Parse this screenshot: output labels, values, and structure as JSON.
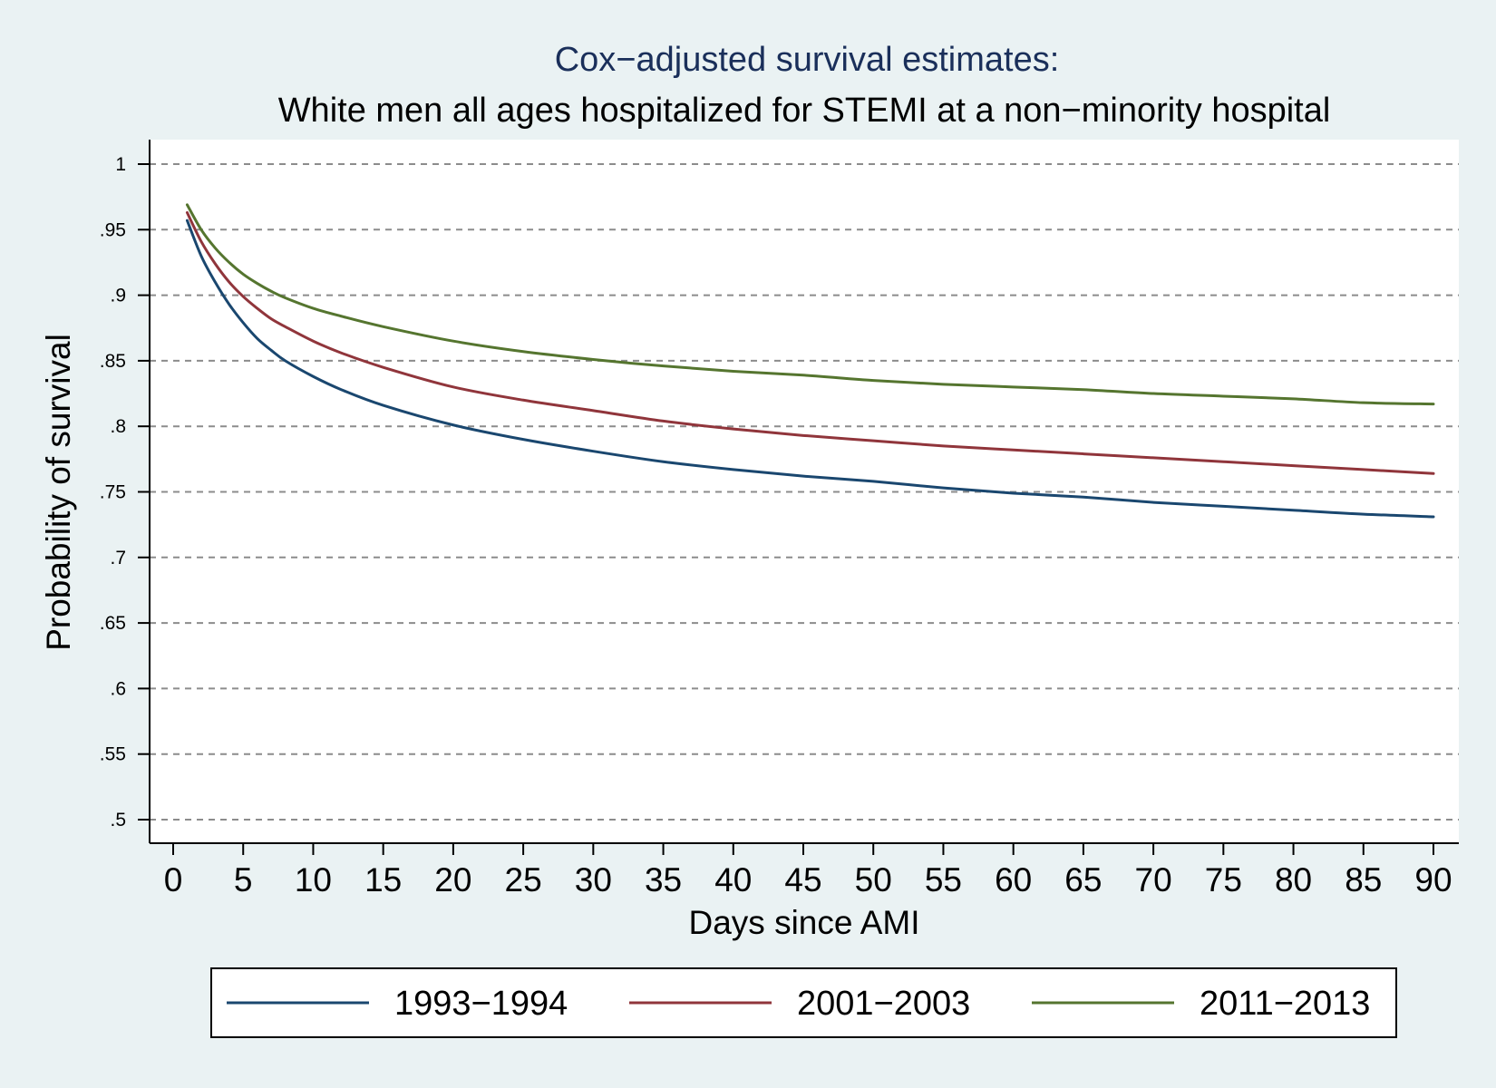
{
  "chart_data": {
    "type": "line",
    "title": "Cox−adjusted survival estimates:",
    "subtitle": "White men all ages hospitalized for STEMI at a non−minority hospital",
    "xlabel": "Days since AMI",
    "ylabel": "Probability of survival",
    "xlim": [
      0,
      90
    ],
    "ylim": [
      0.5,
      1
    ],
    "x_ticks": [
      0,
      5,
      10,
      15,
      20,
      25,
      30,
      35,
      40,
      45,
      50,
      55,
      60,
      65,
      70,
      75,
      80,
      85,
      90
    ],
    "x_tick_labels": [
      "0",
      "5",
      "10",
      "15",
      "20",
      "25",
      "30",
      "35",
      "40",
      "45",
      "50",
      "55",
      "60",
      "65",
      "70",
      "75",
      "80",
      "85",
      "90"
    ],
    "y_ticks": [
      0.5,
      0.55,
      0.6,
      0.65,
      0.7,
      0.75,
      0.8,
      0.85,
      0.9,
      0.95,
      1
    ],
    "y_tick_labels": [
      ".5",
      ".55",
      ".6",
      ".65",
      ".7",
      ".75",
      ".8",
      ".85",
      ".9",
      ".95",
      "1"
    ],
    "grid": "horizontal-dashed",
    "legend_position": "bottom",
    "x": [
      1,
      2,
      3,
      4,
      5,
      6,
      7,
      8,
      10,
      12,
      15,
      20,
      25,
      30,
      35,
      40,
      45,
      50,
      55,
      60,
      65,
      70,
      75,
      80,
      85,
      90
    ],
    "series": [
      {
        "name": "1993−1994",
        "color": "#1a476f",
        "values": [
          0.957,
          0.93,
          0.91,
          0.893,
          0.879,
          0.867,
          0.858,
          0.85,
          0.838,
          0.828,
          0.816,
          0.801,
          0.79,
          0.781,
          0.773,
          0.767,
          0.762,
          0.758,
          0.753,
          0.749,
          0.746,
          0.742,
          0.739,
          0.736,
          0.733,
          0.731
        ]
      },
      {
        "name": "2001−2003",
        "color": "#90353b",
        "values": [
          0.963,
          0.941,
          0.924,
          0.91,
          0.899,
          0.89,
          0.882,
          0.876,
          0.865,
          0.856,
          0.845,
          0.83,
          0.82,
          0.812,
          0.804,
          0.798,
          0.793,
          0.789,
          0.785,
          0.782,
          0.779,
          0.776,
          0.773,
          0.77,
          0.767,
          0.764
        ]
      },
      {
        "name": "2011−2013",
        "color": "#55752f",
        "values": [
          0.969,
          0.95,
          0.936,
          0.925,
          0.916,
          0.909,
          0.903,
          0.898,
          0.89,
          0.884,
          0.876,
          0.865,
          0.857,
          0.851,
          0.846,
          0.842,
          0.839,
          0.835,
          0.832,
          0.83,
          0.828,
          0.825,
          0.823,
          0.821,
          0.818,
          0.817
        ]
      }
    ]
  }
}
